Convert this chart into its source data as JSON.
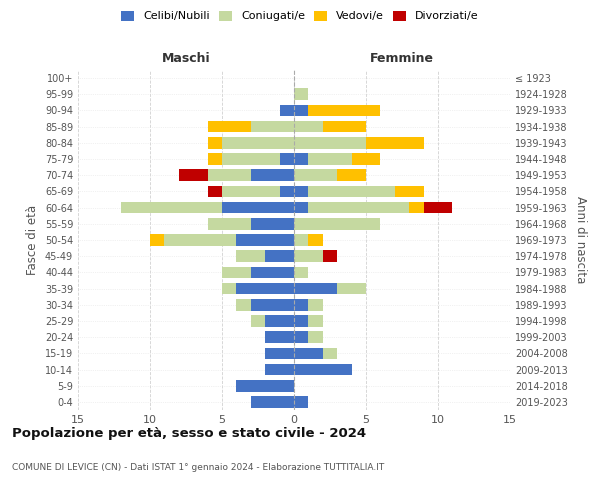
{
  "age_groups": [
    "0-4",
    "5-9",
    "10-14",
    "15-19",
    "20-24",
    "25-29",
    "30-34",
    "35-39",
    "40-44",
    "45-49",
    "50-54",
    "55-59",
    "60-64",
    "65-69",
    "70-74",
    "75-79",
    "80-84",
    "85-89",
    "90-94",
    "95-99",
    "100+"
  ],
  "birth_years": [
    "2019-2023",
    "2014-2018",
    "2009-2013",
    "2004-2008",
    "1999-2003",
    "1994-1998",
    "1989-1993",
    "1984-1988",
    "1979-1983",
    "1974-1978",
    "1969-1973",
    "1964-1968",
    "1959-1963",
    "1954-1958",
    "1949-1953",
    "1944-1948",
    "1939-1943",
    "1934-1938",
    "1929-1933",
    "1924-1928",
    "≤ 1923"
  ],
  "male": {
    "celibi": [
      3,
      4,
      2,
      2,
      2,
      2,
      3,
      4,
      3,
      2,
      4,
      3,
      5,
      1,
      3,
      1,
      0,
      0,
      1,
      0,
      0
    ],
    "coniugati": [
      0,
      0,
      0,
      0,
      0,
      1,
      1,
      1,
      2,
      2,
      5,
      3,
      7,
      4,
      3,
      4,
      5,
      3,
      0,
      0,
      0
    ],
    "vedovi": [
      0,
      0,
      0,
      0,
      0,
      0,
      0,
      0,
      0,
      0,
      1,
      0,
      0,
      0,
      0,
      1,
      1,
      3,
      0,
      0,
      0
    ],
    "divorziati": [
      0,
      0,
      0,
      0,
      0,
      0,
      0,
      0,
      0,
      0,
      0,
      0,
      0,
      1,
      2,
      0,
      0,
      0,
      0,
      0,
      0
    ]
  },
  "female": {
    "nubili": [
      1,
      0,
      4,
      2,
      1,
      1,
      1,
      3,
      0,
      0,
      0,
      0,
      1,
      1,
      0,
      1,
      0,
      0,
      1,
      0,
      0
    ],
    "coniugate": [
      0,
      0,
      0,
      1,
      1,
      1,
      1,
      2,
      1,
      2,
      1,
      6,
      7,
      6,
      3,
      3,
      5,
      2,
      0,
      1,
      0
    ],
    "vedove": [
      0,
      0,
      0,
      0,
      0,
      0,
      0,
      0,
      0,
      0,
      1,
      0,
      1,
      2,
      2,
      2,
      4,
      3,
      5,
      0,
      0
    ],
    "divorziate": [
      0,
      0,
      0,
      0,
      0,
      0,
      0,
      0,
      0,
      1,
      0,
      0,
      2,
      0,
      0,
      0,
      0,
      0,
      0,
      0,
      0
    ]
  },
  "colors": {
    "celibi_nubili": "#4472c4",
    "coniugati": "#c5d9a0",
    "vedovi": "#ffc000",
    "divorziati": "#c00000"
  },
  "xlim": 15,
  "title": "Popolazione per età, sesso e stato civile - 2024",
  "subtitle": "COMUNE DI LEVICE (CN) - Dati ISTAT 1° gennaio 2024 - Elaborazione TUTTITALIA.IT",
  "ylabel_left": "Fasce di età",
  "ylabel_right": "Anni di nascita",
  "xlabel_male": "Maschi",
  "xlabel_female": "Femmine",
  "legend_labels": [
    "Celibi/Nubili",
    "Coniugati/e",
    "Vedovi/e",
    "Divorziati/e"
  ],
  "bg_color": "#ffffff",
  "grid_color": "#cccccc"
}
